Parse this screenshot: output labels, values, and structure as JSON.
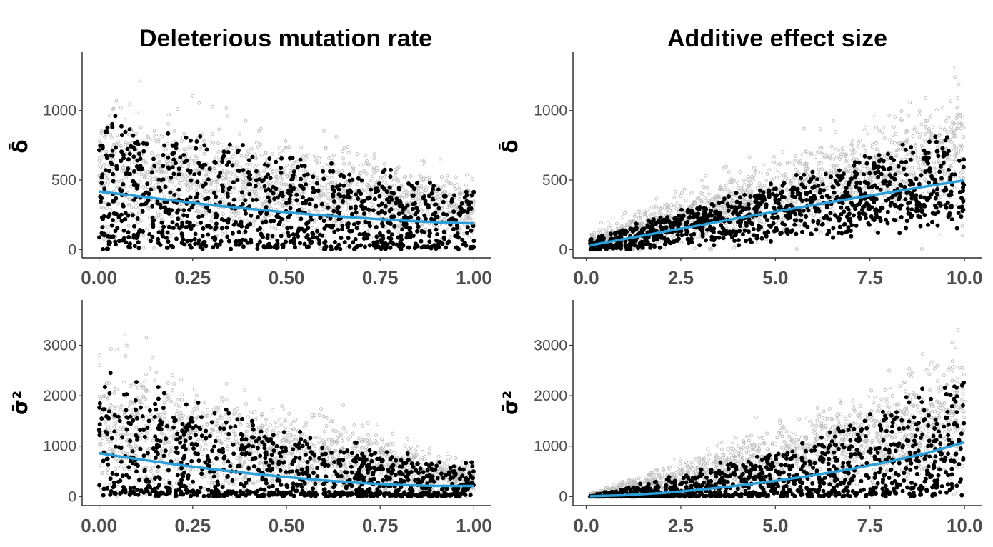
{
  "colors": {
    "raw_points": "#bdbdbd",
    "mean_points": "#000000",
    "fit_line": "#2b9fd9",
    "tick_text": "#4d4d4d"
  },
  "chart_data": [
    {
      "id": "mut-delta",
      "type": "scatter",
      "title": "Deleterious mutation rate",
      "ylabel": "δ̄",
      "xlabel": "",
      "xlim": [
        -0.045,
        1.045
      ],
      "ylim": [
        -60,
        1420
      ],
      "xticks": [
        0.0,
        0.25,
        0.5,
        0.75,
        1.0
      ],
      "xtick_labels": [
        "0.00",
        "0.25",
        "0.50",
        "0.75",
        "1.00"
      ],
      "yticks": [
        0,
        500,
        1000
      ],
      "ytick_labels": [
        "0",
        "500",
        "1000"
      ],
      "grid": false,
      "fit_line": [
        [
          0.0,
          418
        ],
        [
          0.1,
          385
        ],
        [
          0.2,
          352
        ],
        [
          0.3,
          320
        ],
        [
          0.4,
          293
        ],
        [
          0.5,
          268
        ],
        [
          0.6,
          245
        ],
        [
          0.7,
          226
        ],
        [
          0.8,
          210
        ],
        [
          0.9,
          197
        ],
        [
          1.0,
          187
        ]
      ],
      "raw_spread": {
        "center_start": 560,
        "center_end": 300,
        "sd_start": 220,
        "sd_end": 110,
        "max": 1380,
        "count": 1600
      },
      "mean_points": {
        "count": 1000,
        "spread_start": 620,
        "spread_end": 300
      }
    },
    {
      "id": "eff-delta",
      "type": "scatter",
      "title": "Additive effect size",
      "ylabel": "δ̄",
      "xlabel": "",
      "xlim": [
        -0.35,
        10.45
      ],
      "ylim": [
        -60,
        1420
      ],
      "xticks": [
        2.5,
        5.0,
        7.5,
        10.0
      ],
      "xtick_labels": [
        "0.0",
        "2.5",
        "5.0",
        "7.5",
        "10.0"
      ],
      "xtick_values": [
        0.0,
        2.5,
        5.0,
        7.5,
        10.0
      ],
      "yticks": [
        0,
        500,
        1000
      ],
      "ytick_labels": [
        "0",
        "500",
        "1000"
      ],
      "grid": false,
      "fit_line": [
        [
          0.1,
          30
        ],
        [
          1.0,
          75
        ],
        [
          2.0,
          125
        ],
        [
          3.0,
          175
        ],
        [
          4.0,
          225
        ],
        [
          5.0,
          273
        ],
        [
          6.0,
          320
        ],
        [
          7.0,
          366
        ],
        [
          8.0,
          410
        ],
        [
          9.0,
          455
        ],
        [
          10.0,
          498
        ]
      ],
      "raw_spread": {
        "center_start": 60,
        "center_end": 720,
        "sd_start": 40,
        "sd_end": 230,
        "max": 1380,
        "count": 1600
      },
      "mean_points": {
        "count": 1000,
        "spread_start": 60,
        "spread_end": 420
      }
    },
    {
      "id": "mut-sigma",
      "type": "scatter",
      "title": "",
      "ylabel": "σ̄²",
      "xlabel": "",
      "xlim": [
        -0.045,
        1.045
      ],
      "ylim": [
        -180,
        3900
      ],
      "xticks": [
        0.0,
        0.25,
        0.5,
        0.75,
        1.0
      ],
      "xtick_labels": [
        "0.00",
        "0.25",
        "0.50",
        "0.75",
        "1.00"
      ],
      "yticks": [
        0,
        1000,
        2000,
        3000
      ],
      "ytick_labels": [
        "0",
        "1000",
        "2000",
        "3000"
      ],
      "grid": false,
      "fit_line": [
        [
          0.0,
          860
        ],
        [
          0.1,
          745
        ],
        [
          0.2,
          640
        ],
        [
          0.3,
          545
        ],
        [
          0.4,
          460
        ],
        [
          0.5,
          385
        ],
        [
          0.6,
          320
        ],
        [
          0.7,
          268
        ],
        [
          0.8,
          230
        ],
        [
          0.9,
          210
        ],
        [
          1.0,
          210
        ]
      ],
      "raw_spread": {
        "center_start": 1400,
        "center_end": 330,
        "sd_start": 700,
        "sd_end": 160,
        "max": 3800,
        "count": 1600
      },
      "mean_points": {
        "count": 1000,
        "spread_start": 1700,
        "spread_end": 480
      }
    },
    {
      "id": "eff-sigma",
      "type": "scatter",
      "title": "",
      "ylabel": "σ̄²",
      "xlabel": "",
      "xlim": [
        -0.35,
        10.45
      ],
      "ylim": [
        -180,
        3900
      ],
      "xticks": [
        2.5,
        5.0,
        7.5,
        10.0
      ],
      "xtick_labels": [
        "0.0",
        "2.5",
        "5.0",
        "7.5",
        "10.0"
      ],
      "xtick_values": [
        0.0,
        2.5,
        5.0,
        7.5,
        10.0
      ],
      "yticks": [
        0,
        1000,
        2000,
        3000
      ],
      "ytick_labels": [
        "0",
        "1000",
        "2000",
        "3000"
      ],
      "grid": false,
      "fit_line": [
        [
          0.1,
          5
        ],
        [
          1.0,
          25
        ],
        [
          2.0,
          70
        ],
        [
          3.0,
          135
        ],
        [
          4.0,
          215
        ],
        [
          5.0,
          310
        ],
        [
          6.0,
          420
        ],
        [
          7.0,
          545
        ],
        [
          8.0,
          690
        ],
        [
          9.0,
          860
        ],
        [
          10.0,
          1075
        ]
      ],
      "raw_spread": {
        "center_start": 20,
        "center_end": 1500,
        "sd_start": 15,
        "sd_end": 600,
        "max": 3800,
        "count": 1600
      },
      "mean_points": {
        "count": 1000,
        "spread_start": 20,
        "spread_end": 1500
      }
    }
  ]
}
